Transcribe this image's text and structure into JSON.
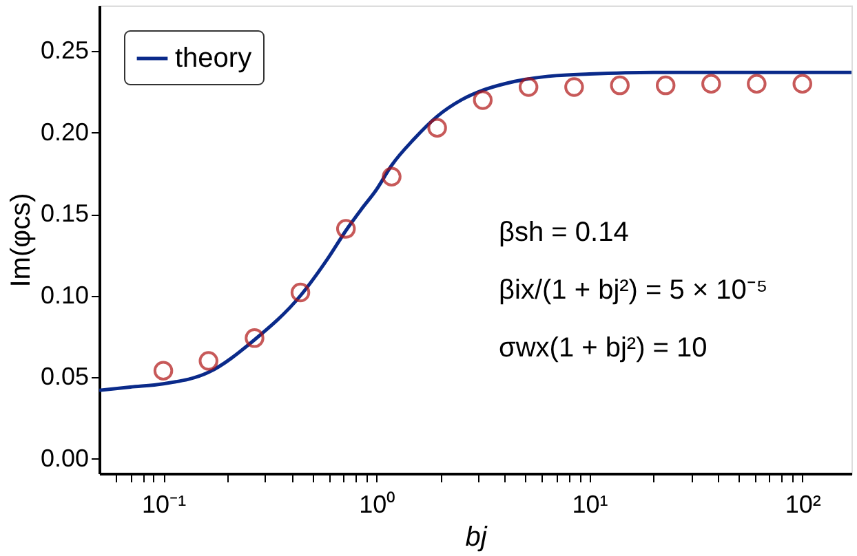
{
  "chart_data": {
    "type": "line",
    "xlabel": "bj",
    "ylabel": "Im(φcs)",
    "log": "x",
    "legend": "top left",
    "grid": false,
    "xlim": [
      0.05,
      170
    ],
    "ylim": [
      -0.009,
      0.278
    ],
    "xticks": [
      {
        "value": 0.1,
        "label": "10⁻¹"
      },
      {
        "value": 1,
        "label": "10⁰"
      },
      {
        "value": 10,
        "label": "10¹"
      },
      {
        "value": 100,
        "label": "10²"
      },
      {
        "value": 0.06,
        "label": null
      },
      {
        "value": 0.07,
        "label": null
      },
      {
        "value": 0.08,
        "label": null
      },
      {
        "value": 0.09,
        "label": null
      },
      {
        "value": 0.2,
        "label": null
      },
      {
        "value": 0.3,
        "label": null
      },
      {
        "value": 0.4,
        "label": null
      },
      {
        "value": 0.5,
        "label": null
      },
      {
        "value": 0.6,
        "label": null
      },
      {
        "value": 0.7,
        "label": null
      },
      {
        "value": 0.8,
        "label": null
      },
      {
        "value": 0.9,
        "label": null
      },
      {
        "value": 2,
        "label": null
      },
      {
        "value": 3,
        "label": null
      },
      {
        "value": 4,
        "label": null
      },
      {
        "value": 5,
        "label": null
      },
      {
        "value": 6,
        "label": null
      },
      {
        "value": 7,
        "label": null
      },
      {
        "value": 8,
        "label": null
      },
      {
        "value": 9,
        "label": null
      },
      {
        "value": 20,
        "label": null
      },
      {
        "value": 30,
        "label": null
      },
      {
        "value": 40,
        "label": null
      },
      {
        "value": 50,
        "label": null
      },
      {
        "value": 60,
        "label": null
      },
      {
        "value": 70,
        "label": null
      },
      {
        "value": 80,
        "label": null
      },
      {
        "value": 90,
        "label": null
      }
    ],
    "yticks": [
      {
        "value": 0,
        "label": "0.00"
      },
      0.05,
      {
        "value": 0.1,
        "label": "0.10"
      },
      0.15,
      {
        "value": 0.2,
        "label": "0.20"
      },
      0.25
    ],
    "annotations": [
      "βsh = 0.14",
      "βix/(1 + bj²) = 5 × 10⁻⁵",
      "σwx(1 + bj²) = 10"
    ],
    "series": [
      {
        "name": "theory",
        "color": "#0a2a8a",
        "marker": "none",
        "line_style": "solid",
        "x": [
          0.05,
          0.07,
          0.1,
          0.163,
          0.268,
          0.44,
          0.6,
          0.72,
          0.85,
          1.0,
          1.18,
          1.5,
          1.93,
          2.5,
          3.16,
          4,
          5.18,
          7,
          10,
          20,
          170
        ],
        "values": [
          0.042,
          0.044,
          0.046,
          0.053,
          0.073,
          0.1,
          0.124,
          0.14,
          0.153,
          0.165,
          0.18,
          0.196,
          0.21,
          0.22,
          0.226,
          0.23,
          0.233,
          0.235,
          0.236,
          0.237,
          0.237
        ]
      },
      {
        "type": "scatter",
        "color": "#b01414",
        "marker": "circle",
        "x": [
          0.1,
          0.163,
          0.268,
          0.44,
          0.72,
          1.18,
          1.93,
          3.16,
          5.18,
          8.48,
          13.9,
          22.8,
          37.3,
          61,
          100
        ],
        "values": [
          0.054,
          0.06,
          0.074,
          0.102,
          0.141,
          0.173,
          0.203,
          0.22,
          0.228,
          0.228,
          0.229,
          0.229,
          0.23,
          0.23,
          0.23
        ]
      }
    ]
  }
}
